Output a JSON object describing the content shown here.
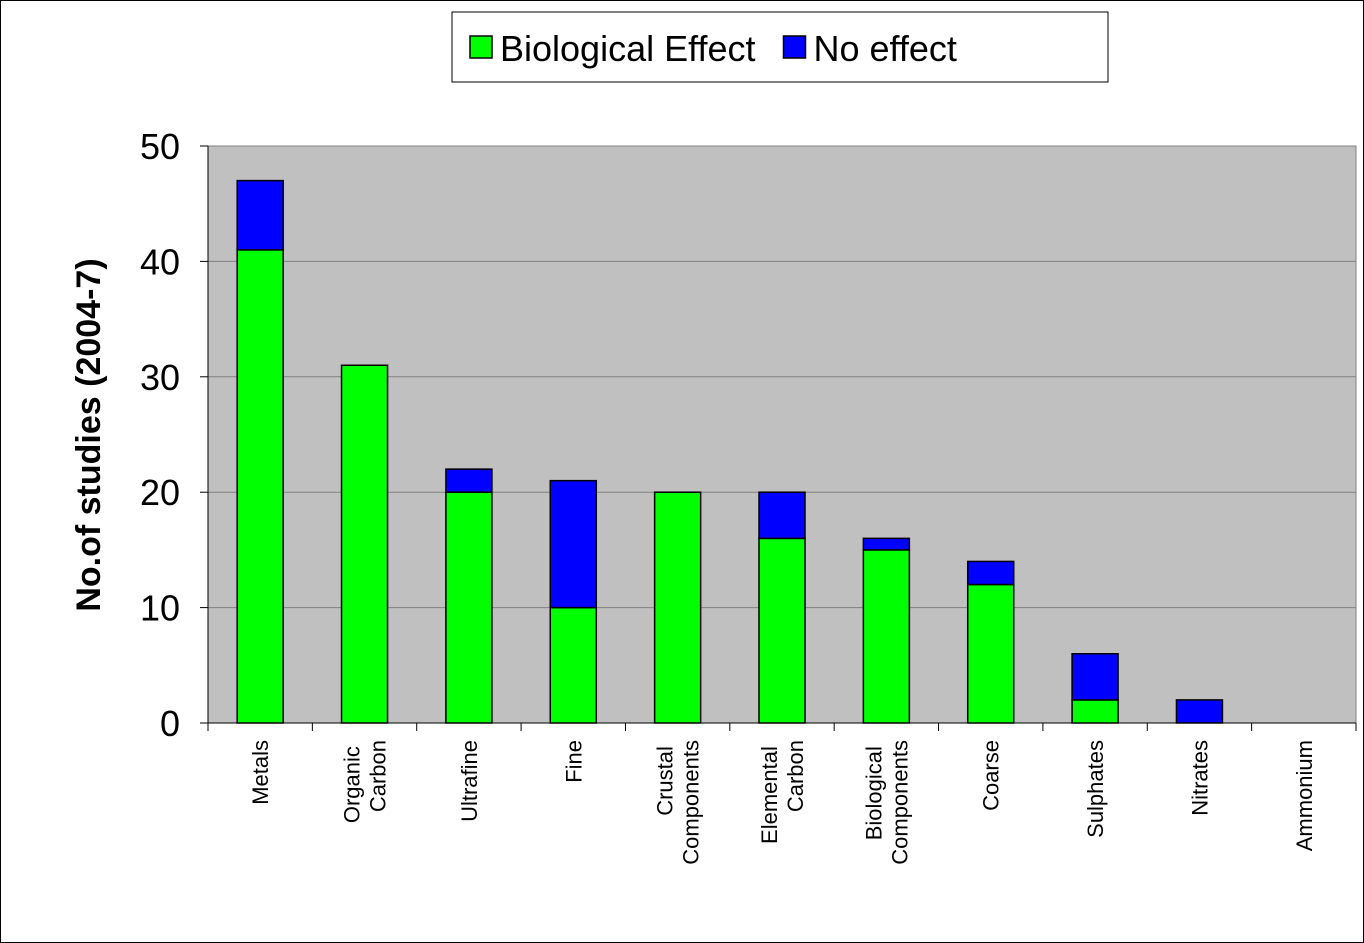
{
  "chart_data": {
    "type": "stacked-bar",
    "y_label": "No.of studies (2004-7)",
    "categories": [
      "Metals",
      "Organic Carbon",
      "Ultrafine",
      "Fine",
      "Crustal Components",
      "Elemental Carbon",
      "Biological Components",
      "Coarse",
      "Sulphates",
      "Nitrates",
      "Ammonium"
    ],
    "series": [
      {
        "name": "Biological Effect",
        "color": "#00ff00",
        "values": [
          41,
          31,
          20,
          10,
          20,
          16,
          15,
          12,
          2,
          0,
          0
        ]
      },
      {
        "name": "No effect",
        "color": "#0000ff",
        "values": [
          6,
          0,
          2,
          11,
          0,
          4,
          1,
          2,
          4,
          2,
          0
        ]
      }
    ],
    "ylim": [
      0,
      50
    ],
    "yticks": [
      0,
      10,
      20,
      30,
      40,
      50
    ],
    "grid": true,
    "legend": "top"
  }
}
